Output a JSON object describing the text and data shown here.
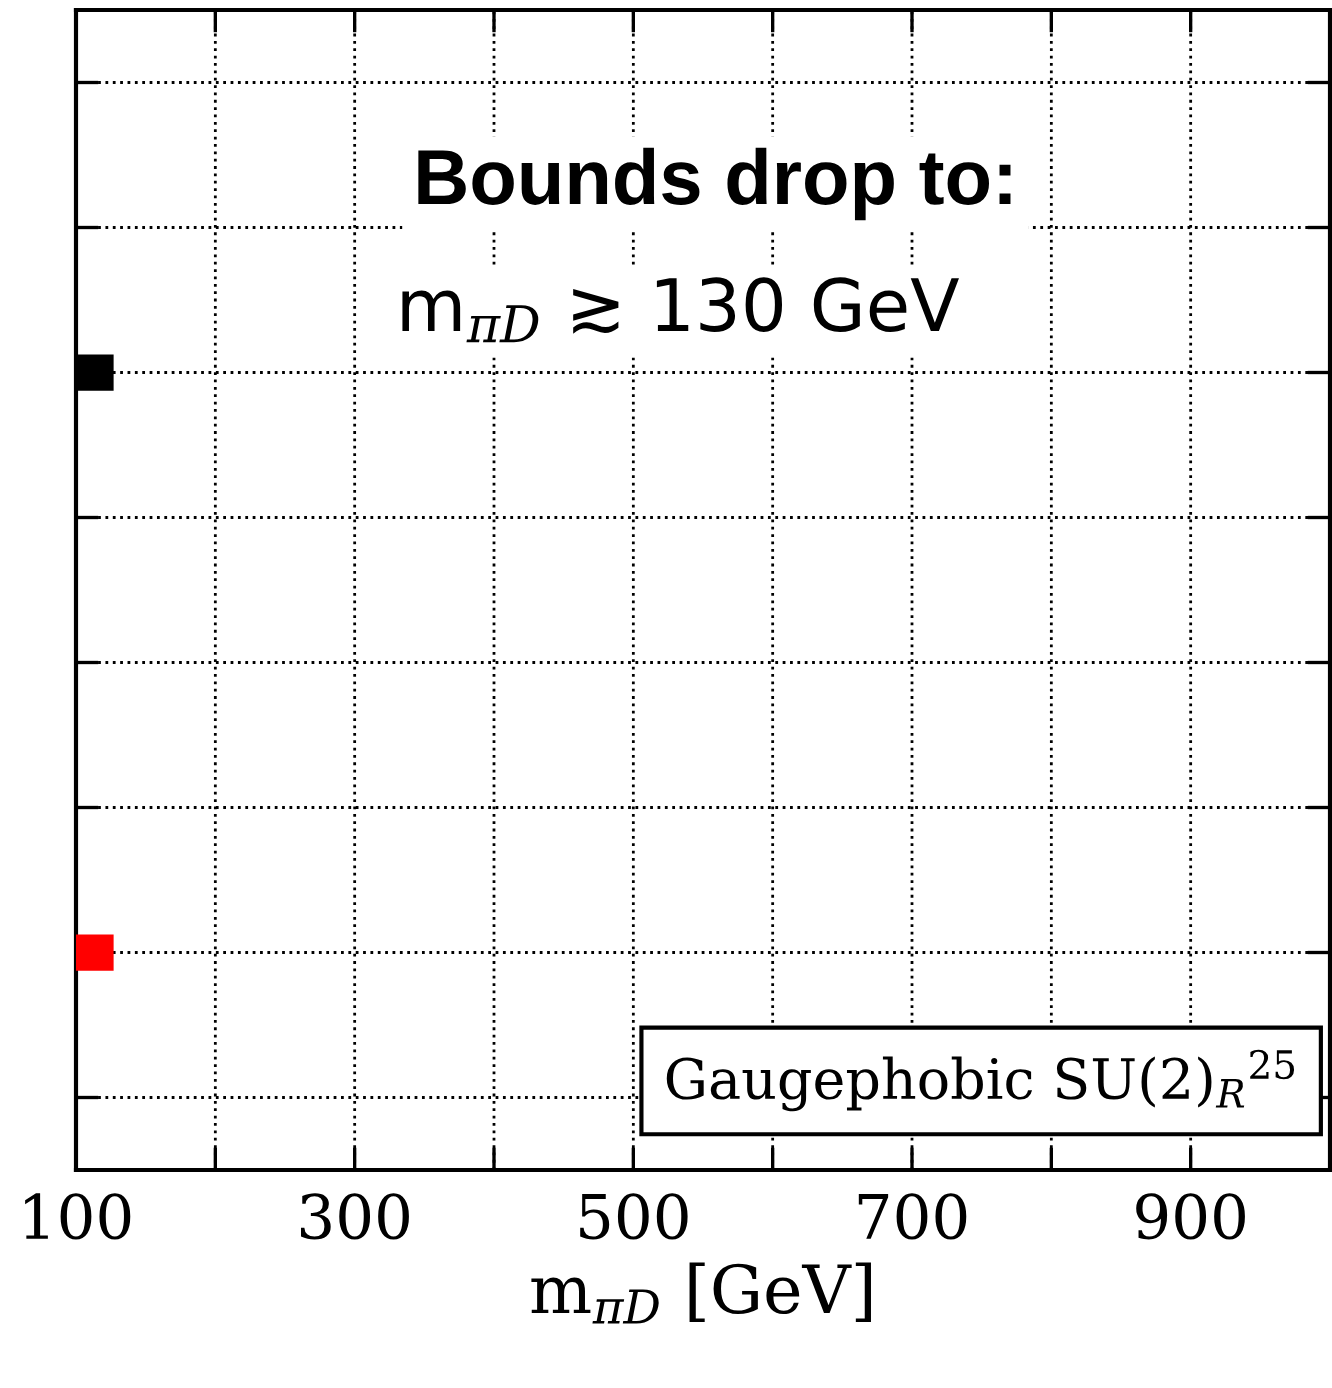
{
  "chart_data": {
    "type": "bar",
    "orientation": "horizontal",
    "categories": [
      null,
      null,
      null,
      null,
      null,
      null,
      null,
      null
    ],
    "values": [
      null,
      null,
      127,
      null,
      null,
      null,
      127,
      null
    ],
    "colors": [
      "#000000",
      "#000000",
      "#000000",
      "#000000",
      "#000000",
      "#000000",
      "#ff0000",
      "#000000"
    ],
    "xlim": [
      100,
      1000
    ],
    "xticks": [
      100,
      {
        "value": 200,
        "label": null
      },
      300,
      {
        "value": 400,
        "label": null
      },
      500,
      {
        "value": 600,
        "label": null
      },
      700,
      {
        "value": 800,
        "label": null
      },
      900,
      {
        "value": 1000,
        "label": null
      }
    ],
    "xlabel": "m$_{πD}$ [GeV]",
    "tick_labels": "x",
    "grid": true,
    "annotations": [
      "Bounds drop to:",
      "m$_{πD}$ ≳ 130 GeV",
      "Gaugephobic SU(2)$_{R}$$^{25}$"
    ]
  }
}
